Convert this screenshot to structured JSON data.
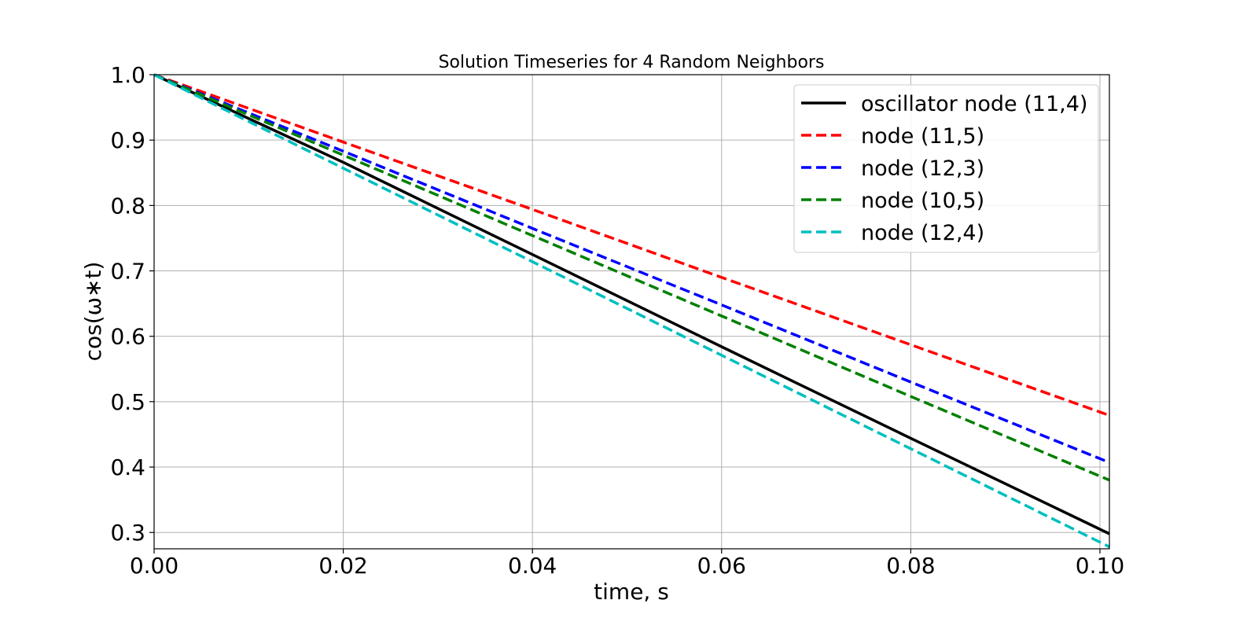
{
  "chart_data": {
    "type": "line",
    "title": "Solution Timeseries for 4 Random Neighbors",
    "xlabel": "time, s",
    "ylabel": "cos(ω∗t)",
    "xlim": [
      0.0,
      0.101
    ],
    "ylim": [
      0.275,
      1.0
    ],
    "grid": true,
    "legend_position": "top-right",
    "x_ticks": [
      0.0,
      0.02,
      0.04,
      0.06,
      0.08,
      0.1
    ],
    "x_tick_labels": [
      "0.00",
      "0.02",
      "0.04",
      "0.06",
      "0.08",
      "0.10"
    ],
    "y_ticks": [
      0.3,
      0.4,
      0.5,
      0.6,
      0.7,
      0.8,
      0.9,
      1.0
    ],
    "y_tick_labels": [
      "0.3",
      "0.4",
      "0.5",
      "0.6",
      "0.7",
      "0.8",
      "0.9",
      "1.0"
    ],
    "series": [
      {
        "name": "oscillator node (11,4)",
        "color": "#000000",
        "style": "solid",
        "x": [
          0.0,
          0.02,
          0.04,
          0.06,
          0.08,
          0.101
        ],
        "y": [
          1.0,
          0.866,
          0.725,
          0.584,
          0.444,
          0.298
        ]
      },
      {
        "name": "node (11,5)",
        "color": "#ff0000",
        "style": "dashed",
        "x": [
          0.0,
          0.02,
          0.04,
          0.06,
          0.08,
          0.101
        ],
        "y": [
          1.0,
          0.897,
          0.794,
          0.69,
          0.587,
          0.479
        ]
      },
      {
        "name": "node (12,3)",
        "color": "#0000ff",
        "style": "dashed",
        "x": [
          0.0,
          0.02,
          0.04,
          0.06,
          0.08,
          0.101
        ],
        "y": [
          1.0,
          0.883,
          0.765,
          0.648,
          0.53,
          0.407
        ]
      },
      {
        "name": "node (10,5)",
        "color": "#008000",
        "style": "dashed",
        "x": [
          0.0,
          0.02,
          0.04,
          0.06,
          0.08,
          0.101
        ],
        "y": [
          1.0,
          0.877,
          0.754,
          0.631,
          0.508,
          0.38
        ]
      },
      {
        "name": "node (12,4)",
        "color": "#00bfbf",
        "style": "dashed",
        "x": [
          0.0,
          0.02,
          0.04,
          0.06,
          0.08,
          0.101
        ],
        "y": [
          1.0,
          0.857,
          0.714,
          0.571,
          0.428,
          0.278
        ]
      }
    ]
  }
}
